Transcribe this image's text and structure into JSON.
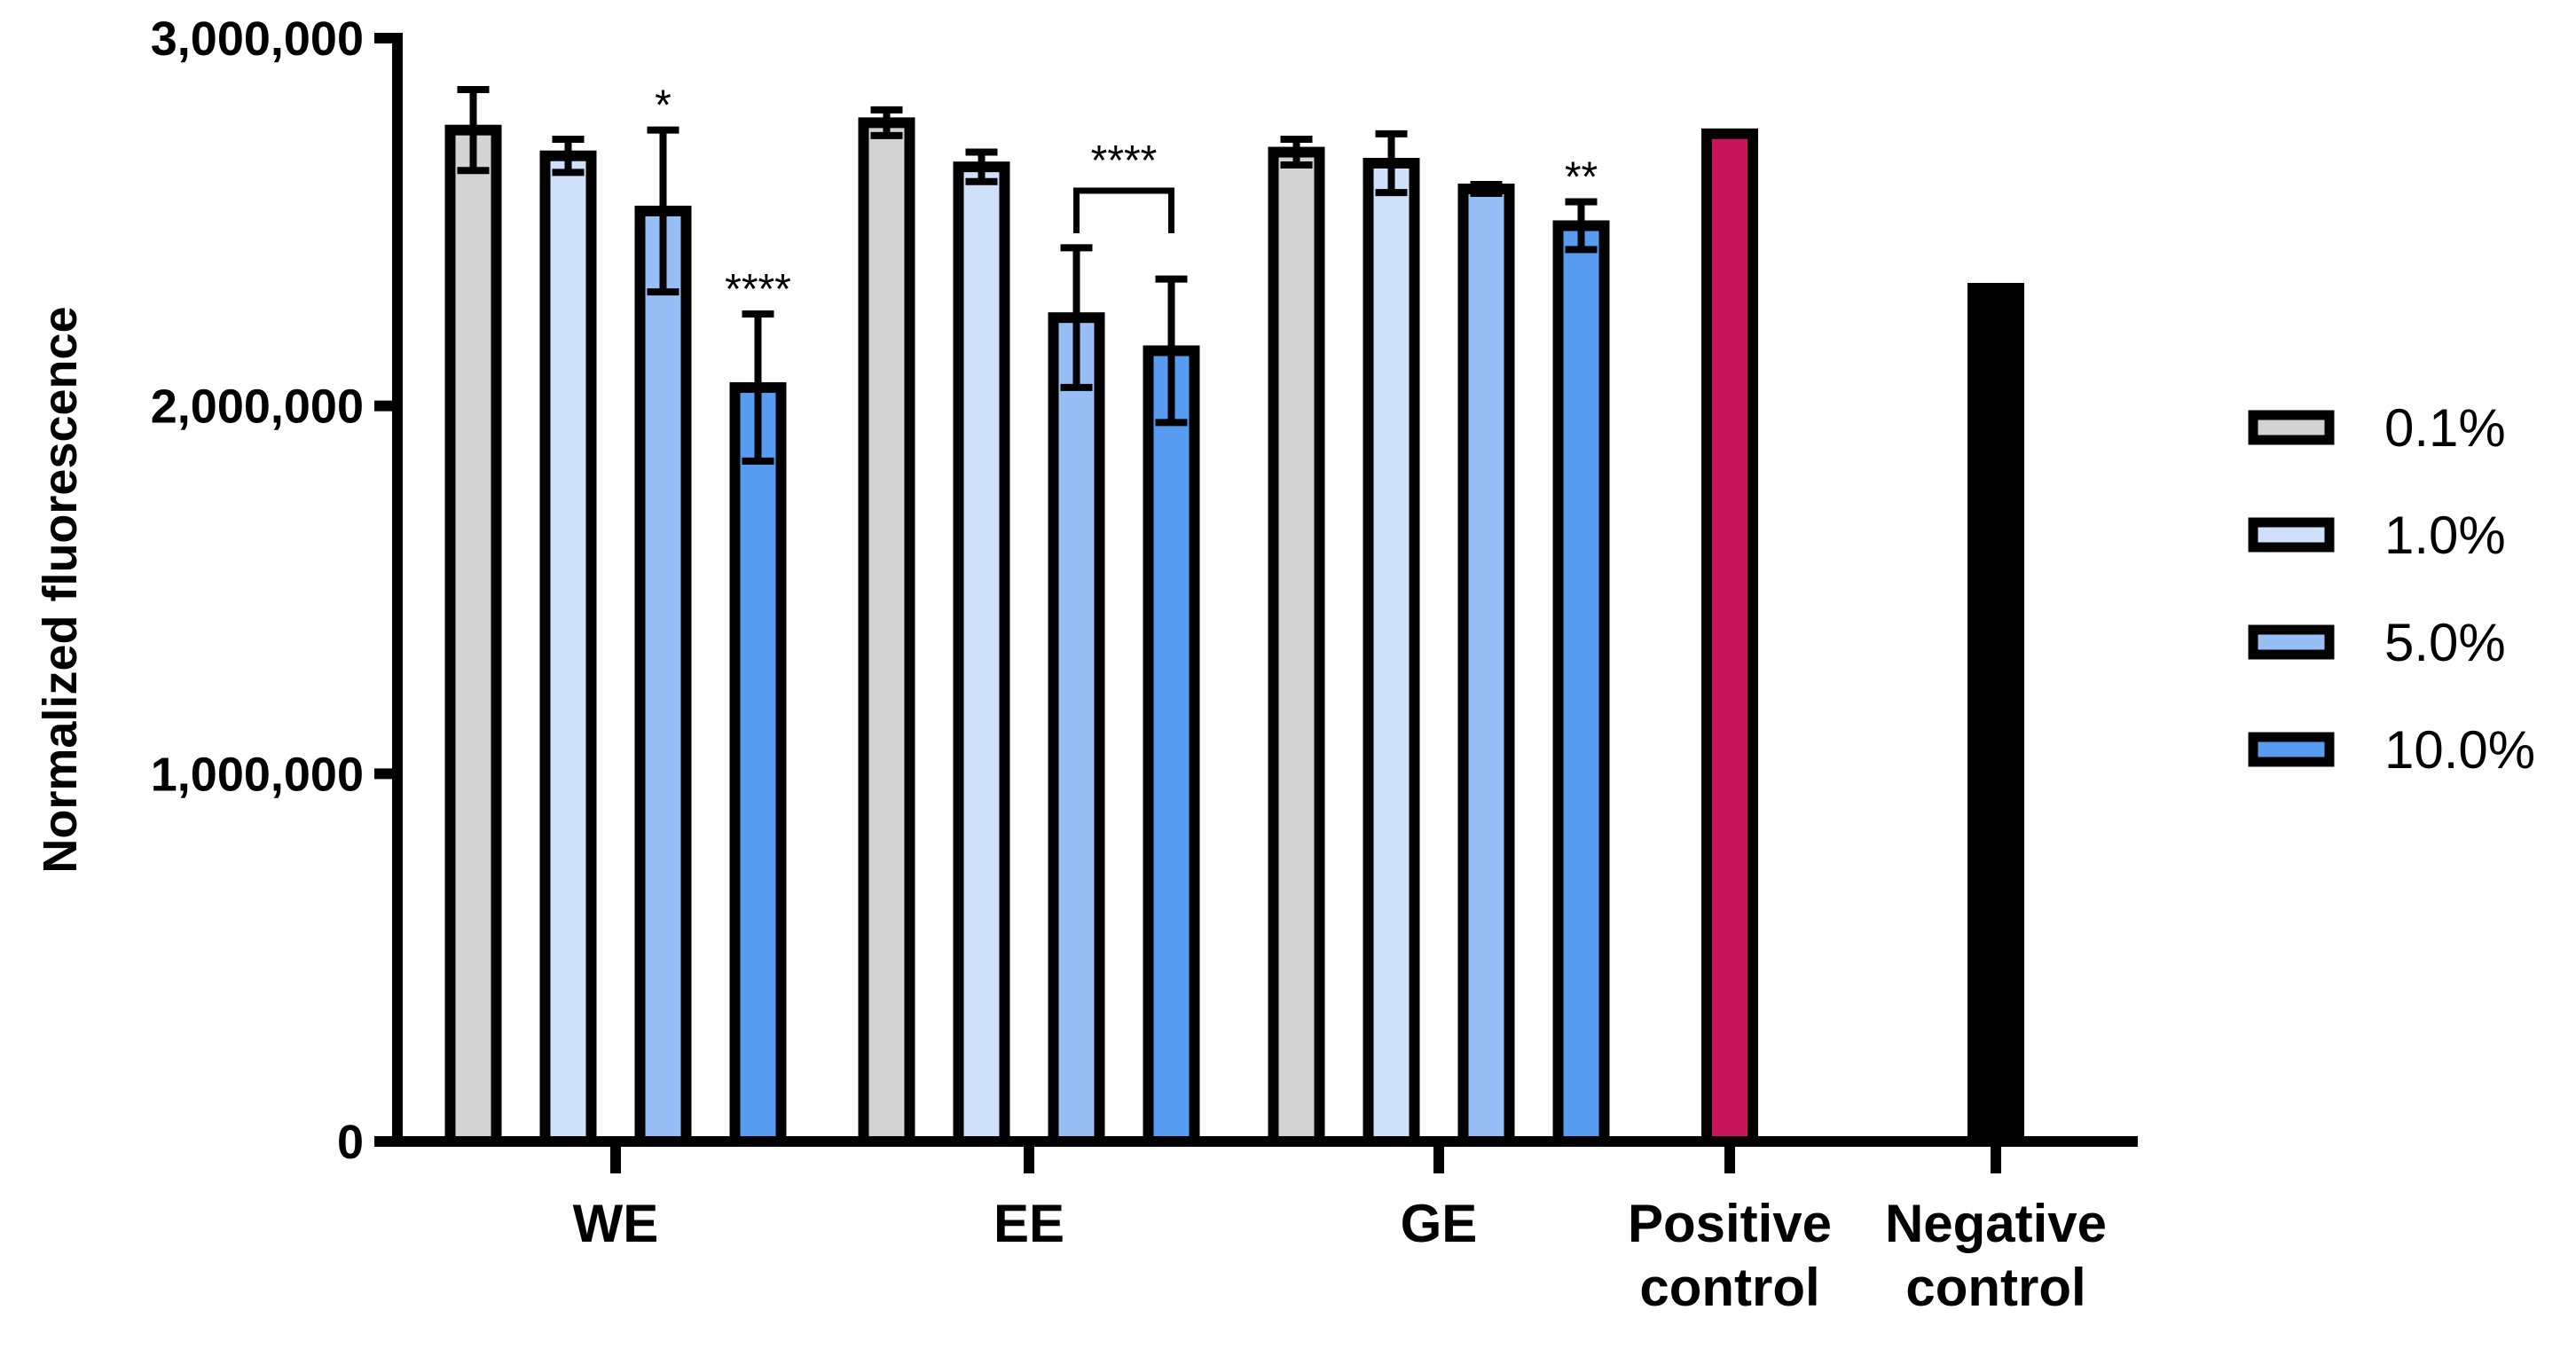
{
  "chart_data": {
    "type": "bar",
    "title": "",
    "xlabel": "",
    "ylabel": "Normalized fluorescence",
    "ylim": [
      0,
      3000000
    ],
    "yticks": [
      0,
      1000000,
      2000000,
      3000000
    ],
    "ytick_labels": [
      "0",
      "1,000,000",
      "2,000,000",
      "3,000,000"
    ],
    "legend_position": "right",
    "series": [
      {
        "name": "0.1%",
        "color": "#d3d3d3"
      },
      {
        "name": "1.0%",
        "color": "#cfe0fa"
      },
      {
        "name": "5.0%",
        "color": "#97bff5"
      },
      {
        "name": "10.0%",
        "color": "#589cf2"
      }
    ],
    "groups": [
      {
        "label": [
          "WE"
        ],
        "bars": [
          {
            "series": "0.1%",
            "value": 2750000,
            "error": 110000,
            "sig": ""
          },
          {
            "series": "1.0%",
            "value": 2680000,
            "error": 45000,
            "sig": ""
          },
          {
            "series": "5.0%",
            "value": 2530000,
            "error": 220000,
            "sig": "*"
          },
          {
            "series": "10.0%",
            "value": 2050000,
            "error": 200000,
            "sig": "****"
          }
        ]
      },
      {
        "label": [
          "EE"
        ],
        "bars": [
          {
            "series": "0.1%",
            "value": 2770000,
            "error": 35000,
            "sig": ""
          },
          {
            "series": "1.0%",
            "value": 2650000,
            "error": 40000,
            "sig": ""
          },
          {
            "series": "5.0%",
            "value": 2240000,
            "error": 190000,
            "sig": ""
          },
          {
            "series": "10.0%",
            "value": 2150000,
            "error": 195000,
            "sig": ""
          }
        ],
        "bracket": {
          "from_bar": 2,
          "to_bar": 3,
          "label": "****"
        }
      },
      {
        "label": [
          "GE"
        ],
        "bars": [
          {
            "series": "0.1%",
            "value": 2690000,
            "error": 35000,
            "sig": ""
          },
          {
            "series": "1.0%",
            "value": 2660000,
            "error": 80000,
            "sig": ""
          },
          {
            "series": "5.0%",
            "value": 2590000,
            "error": 12000,
            "sig": ""
          },
          {
            "series": "10.0%",
            "value": 2490000,
            "error": 65000,
            "sig": "**"
          }
        ]
      },
      {
        "label": [
          "Positive",
          "control"
        ],
        "bars": [
          {
            "series": "Positive control",
            "value": 2740000,
            "color": "#c8145a"
          }
        ]
      },
      {
        "label": [
          "Negative",
          "control"
        ],
        "bars": [
          {
            "series": "Negative control",
            "value": 2320000,
            "color": "#000000"
          }
        ]
      }
    ]
  }
}
